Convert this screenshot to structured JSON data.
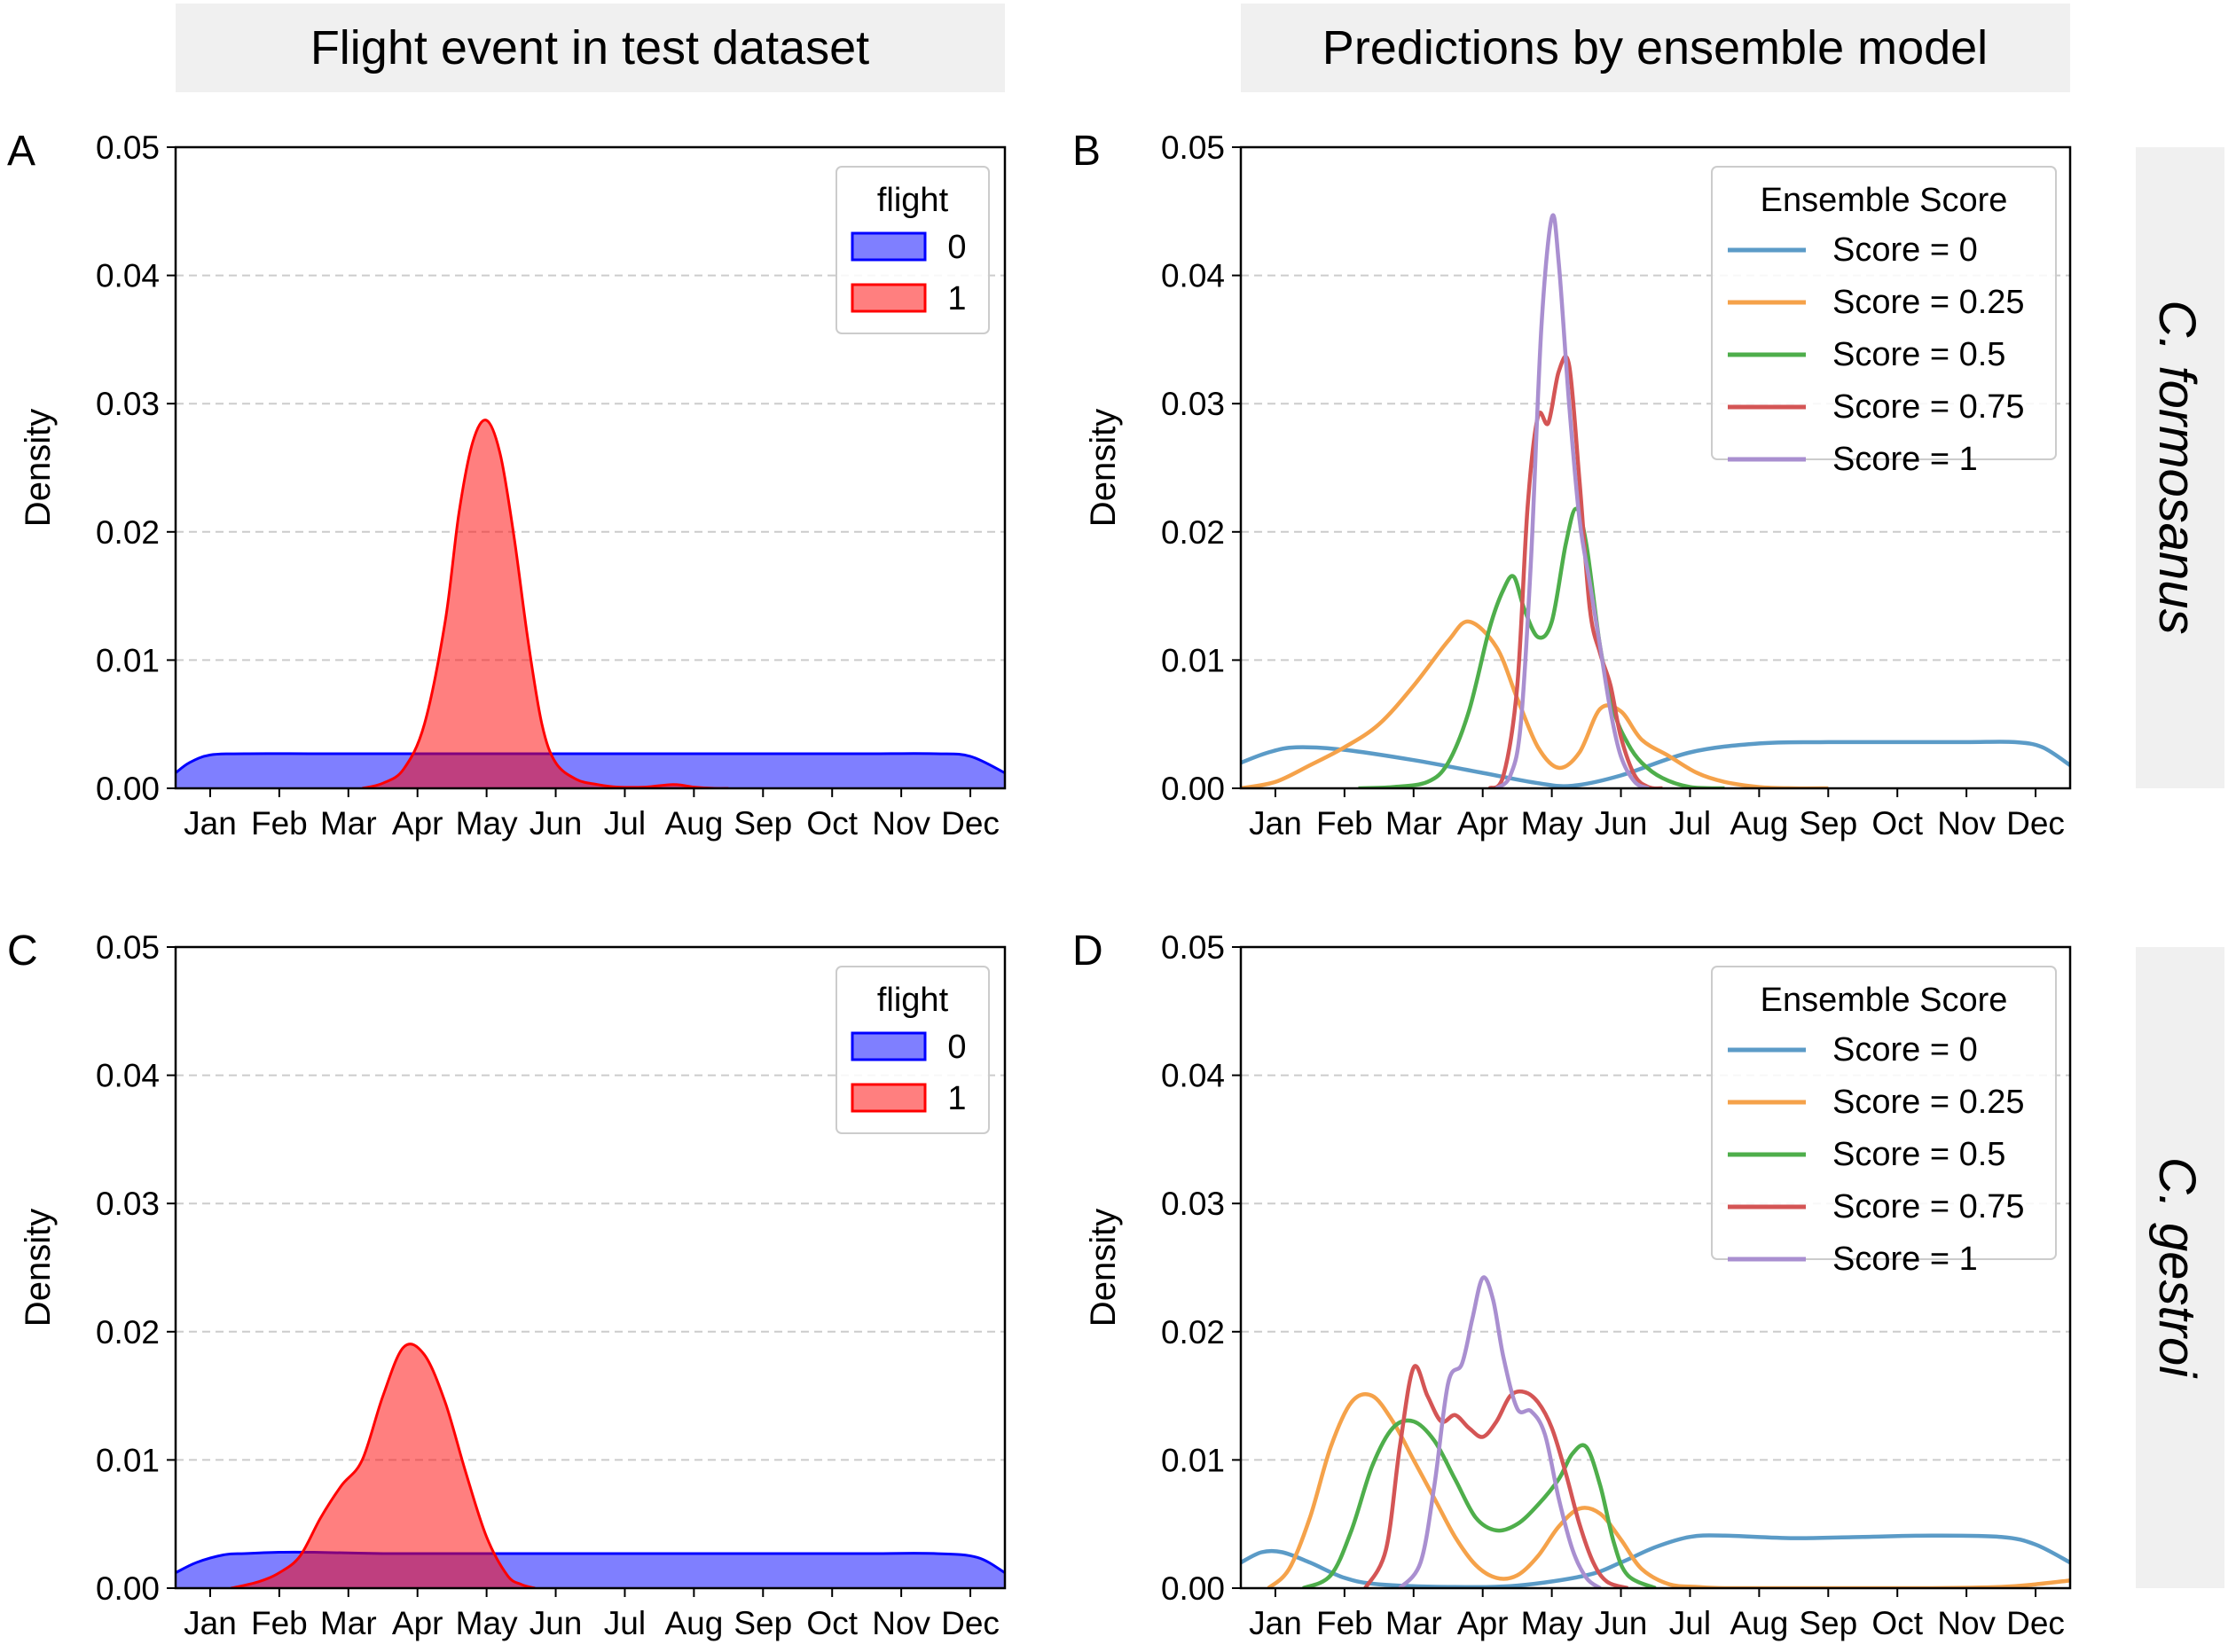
{
  "headers": {
    "left": "Flight event in test dataset",
    "right": "Predictions by ensemble model"
  },
  "species": [
    "C. formosanus",
    "C. gestroi"
  ],
  "colors": {
    "flight_0": "#0000ff",
    "flight_1": "#ff0000",
    "score_0": "#5b9bc7",
    "score_025": "#f5a24a",
    "score_05": "#4eae4b",
    "score_075": "#d45555",
    "score_1": "#a98fd0",
    "strip_bg": "#f0f0f0",
    "grid": "#cccccc"
  },
  "chart_data": [
    {
      "panel": "A",
      "type": "area",
      "title": "",
      "xlabel": "",
      "ylabel": "Density",
      "xlim": [
        0,
        12
      ],
      "ylim": [
        0,
        0.05
      ],
      "yticks": [
        "0.00",
        "0.01",
        "0.02",
        "0.03",
        "0.04",
        "0.05"
      ],
      "xticks": [
        "Jan",
        "Feb",
        "Mar",
        "Apr",
        "May",
        "Jun",
        "Jul",
        "Aug",
        "Sep",
        "Oct",
        "Nov",
        "Dec"
      ],
      "grid": "horizontal dashed",
      "legend": {
        "title": "flight",
        "placement": "top-right",
        "entries": [
          "0",
          "1"
        ]
      },
      "series": [
        {
          "name": "0",
          "x": [
            0,
            0.2,
            0.5,
            1,
            2,
            3,
            4,
            5,
            6,
            7,
            8,
            9,
            10,
            11,
            11.5,
            12
          ],
          "values": [
            0.0012,
            0.002,
            0.0026,
            0.0027,
            0.0027,
            0.0027,
            0.0027,
            0.0027,
            0.0027,
            0.0027,
            0.0027,
            0.0027,
            0.0027,
            0.0027,
            0.0025,
            0.0012
          ]
        },
        {
          "name": "1",
          "x": [
            2.7,
            3.0,
            3.3,
            3.6,
            3.9,
            4.1,
            4.3,
            4.5,
            4.7,
            4.9,
            5.1,
            5.3,
            5.5,
            5.8,
            6.1,
            6.4,
            6.8,
            7.2,
            7.5,
            7.8,
            8.0
          ],
          "values": [
            0,
            0.0004,
            0.0015,
            0.005,
            0.013,
            0.0215,
            0.027,
            0.0287,
            0.026,
            0.0195,
            0.0115,
            0.005,
            0.002,
            0.0007,
            0.0003,
            0.0001,
            0.0001,
            0.0003,
            0.0001,
            0,
            0
          ]
        }
      ]
    },
    {
      "panel": "B",
      "type": "line",
      "title": "",
      "xlabel": "",
      "ylabel": "Density",
      "xlim": [
        0,
        12
      ],
      "ylim": [
        0,
        0.05
      ],
      "yticks": [
        "0.00",
        "0.01",
        "0.02",
        "0.03",
        "0.04",
        "0.05"
      ],
      "xticks": [
        "Jan",
        "Feb",
        "Mar",
        "Apr",
        "May",
        "Jun",
        "Jul",
        "Aug",
        "Sep",
        "Oct",
        "Nov",
        "Dec"
      ],
      "grid": "horizontal dashed",
      "legend": {
        "title": "Ensemble Score",
        "placement": "top-right",
        "entries": [
          "Score = 0",
          "Score = 0.25",
          "Score = 0.5",
          "Score = 0.75",
          "Score = 1"
        ]
      },
      "series": [
        {
          "name": "Score = 0",
          "x": [
            0,
            0.4,
            0.8,
            1.5,
            2.5,
            3.5,
            4.3,
            4.8,
            5.5,
            6.5,
            7.5,
            8.5,
            9.5,
            10.5,
            11.2,
            11.6,
            12
          ],
          "values": [
            0.002,
            0.0028,
            0.0032,
            0.003,
            0.0022,
            0.0012,
            0.0004,
            0.0002,
            0.001,
            0.0028,
            0.0035,
            0.0036,
            0.0036,
            0.0036,
            0.0036,
            0.0032,
            0.0018
          ]
        },
        {
          "name": "Score = 0.25",
          "x": [
            0,
            0.5,
            1.0,
            1.5,
            2.0,
            2.5,
            3.0,
            3.3,
            3.7,
            4.0,
            4.3,
            4.6,
            4.9,
            5.2,
            5.5,
            5.8,
            6.2,
            6.6,
            7.0,
            7.5,
            8.0,
            8.5
          ],
          "values": [
            0,
            0.0005,
            0.0018,
            0.0032,
            0.005,
            0.008,
            0.0115,
            0.013,
            0.011,
            0.007,
            0.0032,
            0.0016,
            0.0028,
            0.0062,
            0.006,
            0.0038,
            0.0025,
            0.0012,
            0.0005,
            0.0001,
            0,
            0
          ]
        },
        {
          "name": "Score = 0.5",
          "x": [
            1.7,
            2.2,
            2.7,
            3.0,
            3.3,
            3.6,
            3.8,
            3.95,
            4.1,
            4.3,
            4.5,
            4.7,
            4.85,
            5.0,
            5.2,
            5.4,
            5.6,
            5.8,
            6.1,
            6.5,
            7.0
          ],
          "values": [
            0,
            0.0001,
            0.0005,
            0.002,
            0.006,
            0.0125,
            0.0155,
            0.0165,
            0.014,
            0.0118,
            0.013,
            0.019,
            0.0218,
            0.019,
            0.011,
            0.006,
            0.0035,
            0.002,
            0.0008,
            0.0001,
            0
          ]
        },
        {
          "name": "Score = 0.75",
          "x": [
            3.6,
            3.8,
            4.0,
            4.15,
            4.3,
            4.45,
            4.6,
            4.75,
            4.9,
            5.05,
            5.2,
            5.35,
            5.5,
            5.7,
            5.9,
            6.1
          ],
          "values": [
            0,
            0.001,
            0.008,
            0.022,
            0.029,
            0.0285,
            0.0325,
            0.033,
            0.024,
            0.014,
            0.0105,
            0.008,
            0.004,
            0.001,
            0.0001,
            0
          ]
        },
        {
          "name": "Score = 1",
          "x": [
            3.7,
            3.9,
            4.05,
            4.2,
            4.35,
            4.5,
            4.6,
            4.75,
            4.9,
            5.05,
            5.2,
            5.35,
            5.5,
            5.7,
            5.9
          ],
          "values": [
            0,
            0.001,
            0.005,
            0.018,
            0.036,
            0.0445,
            0.041,
            0.03,
            0.021,
            0.016,
            0.011,
            0.006,
            0.0025,
            0.0005,
            0
          ]
        }
      ]
    },
    {
      "panel": "C",
      "type": "area",
      "title": "",
      "xlabel": "",
      "ylabel": "Density",
      "xlim": [
        0,
        12
      ],
      "ylim": [
        0,
        0.05
      ],
      "yticks": [
        "0.00",
        "0.01",
        "0.02",
        "0.03",
        "0.04",
        "0.05"
      ],
      "xticks": [
        "Jan",
        "Feb",
        "Mar",
        "Apr",
        "May",
        "Jun",
        "Jul",
        "Aug",
        "Sep",
        "Oct",
        "Nov",
        "Dec"
      ],
      "grid": "horizontal dashed",
      "legend": {
        "title": "flight",
        "placement": "top-right",
        "entries": [
          "0",
          "1"
        ]
      },
      "series": [
        {
          "name": "0",
          "x": [
            0,
            0.3,
            0.7,
            1.0,
            1.5,
            2.0,
            3.0,
            4.0,
            5.0,
            6.0,
            7.0,
            8.0,
            9.0,
            10.0,
            11.0,
            11.6,
            12
          ],
          "values": [
            0.0012,
            0.002,
            0.0026,
            0.0027,
            0.0028,
            0.0028,
            0.0027,
            0.0027,
            0.0027,
            0.0027,
            0.0027,
            0.0027,
            0.0027,
            0.0027,
            0.0027,
            0.0024,
            0.0012
          ]
        },
        {
          "name": "1",
          "x": [
            0.8,
            1.2,
            1.5,
            1.8,
            2.1,
            2.4,
            2.7,
            3.0,
            3.3,
            3.6,
            3.9,
            4.2,
            4.5,
            4.8,
            5.0,
            5.2
          ],
          "values": [
            0,
            0.0005,
            0.0012,
            0.0025,
            0.0055,
            0.008,
            0.01,
            0.015,
            0.0188,
            0.0182,
            0.0145,
            0.009,
            0.004,
            0.001,
            0.0003,
            0
          ]
        }
      ]
    },
    {
      "panel": "D",
      "type": "line",
      "title": "",
      "xlabel": "",
      "ylabel": "Density",
      "xlim": [
        0,
        12
      ],
      "ylim": [
        0,
        0.05
      ],
      "yticks": [
        "0.00",
        "0.01",
        "0.02",
        "0.03",
        "0.04",
        "0.05"
      ],
      "xticks": [
        "Jan",
        "Feb",
        "Mar",
        "Apr",
        "May",
        "Jun",
        "Jul",
        "Aug",
        "Sep",
        "Oct",
        "Nov",
        "Dec"
      ],
      "grid": "horizontal dashed",
      "legend": {
        "title": "Ensemble Score",
        "placement": "top-right",
        "entries": [
          "Score = 0",
          "Score = 0.25",
          "Score = 0.5",
          "Score = 0.75",
          "Score = 1"
        ]
      },
      "series": [
        {
          "name": "Score = 0",
          "x": [
            0,
            0.3,
            0.6,
            1.0,
            1.5,
            2.0,
            3.0,
            4.0,
            5.0,
            5.5,
            6.0,
            6.5,
            7.0,
            8.0,
            9.0,
            10.0,
            11.0,
            11.5,
            12
          ],
          "values": [
            0.002,
            0.0028,
            0.0028,
            0.002,
            0.0008,
            0.0003,
            0.0001,
            0.0002,
            0.001,
            0.002,
            0.0032,
            0.004,
            0.0041,
            0.0039,
            0.004,
            0.0041,
            0.004,
            0.0034,
            0.002
          ]
        },
        {
          "name": "Score = 0.25",
          "x": [
            0.4,
            0.7,
            1.0,
            1.3,
            1.6,
            1.9,
            2.2,
            2.5,
            2.8,
            3.1,
            3.4,
            3.7,
            4.0,
            4.3,
            4.6,
            4.9,
            5.2,
            5.5,
            5.8,
            6.2,
            6.6,
            7.0,
            8.0,
            9.0,
            10.0,
            11.0,
            11.5,
            12
          ],
          "values": [
            0,
            0.0015,
            0.0055,
            0.011,
            0.0145,
            0.015,
            0.013,
            0.01,
            0.007,
            0.004,
            0.0018,
            0.0008,
            0.001,
            0.0025,
            0.0048,
            0.0062,
            0.0058,
            0.0038,
            0.0015,
            0.0003,
            0.0001,
            0,
            0,
            0,
            0,
            0.0001,
            0.0003,
            0.0006
          ]
        },
        {
          "name": "Score = 0.5",
          "x": [
            0.9,
            1.3,
            1.6,
            1.9,
            2.2,
            2.5,
            2.8,
            3.1,
            3.4,
            3.7,
            4.0,
            4.3,
            4.6,
            4.8,
            5.0,
            5.2,
            5.4,
            5.6,
            6.0
          ],
          "values": [
            0,
            0.001,
            0.0045,
            0.0095,
            0.0125,
            0.013,
            0.0115,
            0.0085,
            0.0055,
            0.0045,
            0.005,
            0.0065,
            0.0085,
            0.0105,
            0.011,
            0.008,
            0.0035,
            0.001,
            0
          ]
        },
        {
          "name": "Score = 0.75",
          "x": [
            1.8,
            2.1,
            2.3,
            2.5,
            2.7,
            2.9,
            3.1,
            3.3,
            3.5,
            3.7,
            3.9,
            4.1,
            4.3,
            4.5,
            4.7,
            4.9,
            5.1,
            5.3,
            5.6
          ],
          "values": [
            0,
            0.003,
            0.011,
            0.0172,
            0.015,
            0.013,
            0.0135,
            0.0125,
            0.0118,
            0.013,
            0.015,
            0.0153,
            0.0145,
            0.0125,
            0.009,
            0.005,
            0.002,
            0.0005,
            0
          ]
        },
        {
          "name": "Score = 1",
          "x": [
            2.3,
            2.6,
            2.8,
            3.0,
            3.2,
            3.35,
            3.5,
            3.65,
            3.8,
            4.0,
            4.2,
            4.4,
            4.6,
            4.8,
            5.0,
            5.2
          ],
          "values": [
            0,
            0.002,
            0.008,
            0.016,
            0.0175,
            0.021,
            0.0242,
            0.0225,
            0.018,
            0.014,
            0.0138,
            0.012,
            0.007,
            0.003,
            0.0008,
            0
          ]
        }
      ]
    }
  ]
}
